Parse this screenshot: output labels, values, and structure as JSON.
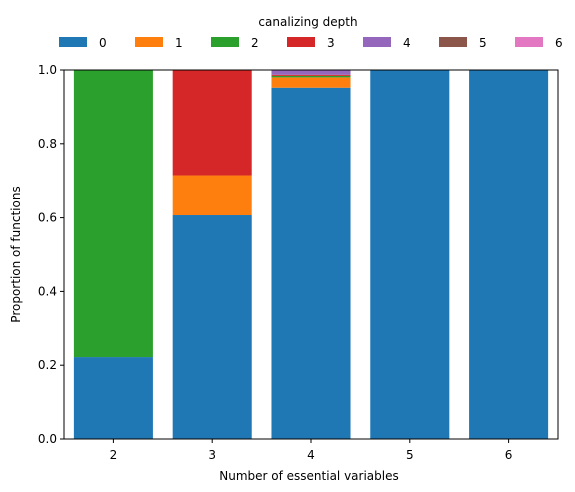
{
  "chart_data": {
    "type": "bar",
    "stacked": true,
    "categories": [
      "2",
      "3",
      "4",
      "5",
      "6"
    ],
    "xlabel": "Number of essential variables",
    "ylabel": "Proportion of functions",
    "ylim": [
      0,
      1
    ],
    "yticks": [
      "0.0",
      "0.2",
      "0.4",
      "0.6",
      "0.8",
      "1.0"
    ],
    "grid": false,
    "legend": {
      "title": "canalizing depth",
      "placement": "top",
      "columns": 7
    },
    "series": [
      {
        "name": "0",
        "color": "#1f77b4",
        "values": [
          0.222,
          0.607,
          0.952,
          1.0,
          1.0
        ]
      },
      {
        "name": "1",
        "color": "#ff7f0e",
        "values": [
          0.0,
          0.107,
          0.028,
          0.0,
          0.0
        ]
      },
      {
        "name": "2",
        "color": "#2ca02c",
        "values": [
          0.778,
          0.0,
          0.004,
          0.0,
          0.0
        ]
      },
      {
        "name": "3",
        "color": "#d62728",
        "values": [
          0.0,
          0.286,
          0.003,
          0.0,
          0.0
        ]
      },
      {
        "name": "4",
        "color": "#9467bd",
        "values": [
          0.0,
          0.0,
          0.013,
          0.0,
          0.0
        ]
      },
      {
        "name": "5",
        "color": "#8c564b",
        "values": [
          0.0,
          0.0,
          0.0,
          0.0,
          0.0
        ]
      },
      {
        "name": "6",
        "color": "#e377c2",
        "values": [
          0.0,
          0.0,
          0.0,
          0.0,
          0.0
        ]
      }
    ]
  }
}
